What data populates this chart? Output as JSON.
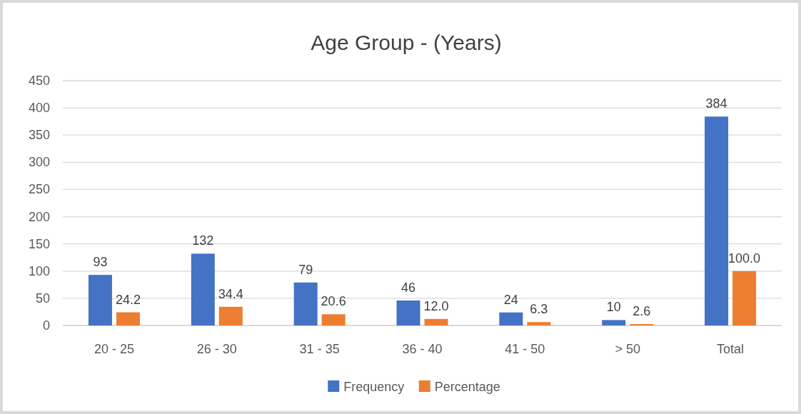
{
  "chart_data": {
    "type": "bar",
    "title": "Age Group - (Years)",
    "categories": [
      "20 - 25",
      "26 - 30",
      "31 - 35",
      "36 - 40",
      "41 - 50",
      "> 50",
      "Total"
    ],
    "series": [
      {
        "name": "Frequency",
        "color": "#4472c4",
        "values": [
          93,
          132,
          79,
          46,
          24,
          10,
          384
        ],
        "value_labels": [
          "93",
          "132",
          "79",
          "46",
          "24",
          "10",
          "384"
        ]
      },
      {
        "name": "Percentage",
        "color": "#ed7d31",
        "values": [
          24.2,
          34.4,
          20.6,
          12.0,
          6.3,
          2.6,
          100.0
        ],
        "value_labels": [
          "24.2",
          "34.4",
          "20.6",
          "12.0",
          "6.3",
          "2.6",
          "100.0"
        ]
      }
    ],
    "ylim": [
      0,
      450
    ],
    "yticks": [
      0,
      50,
      100,
      150,
      200,
      250,
      300,
      350,
      400,
      450
    ],
    "grid": "y",
    "legend": "bottom"
  }
}
